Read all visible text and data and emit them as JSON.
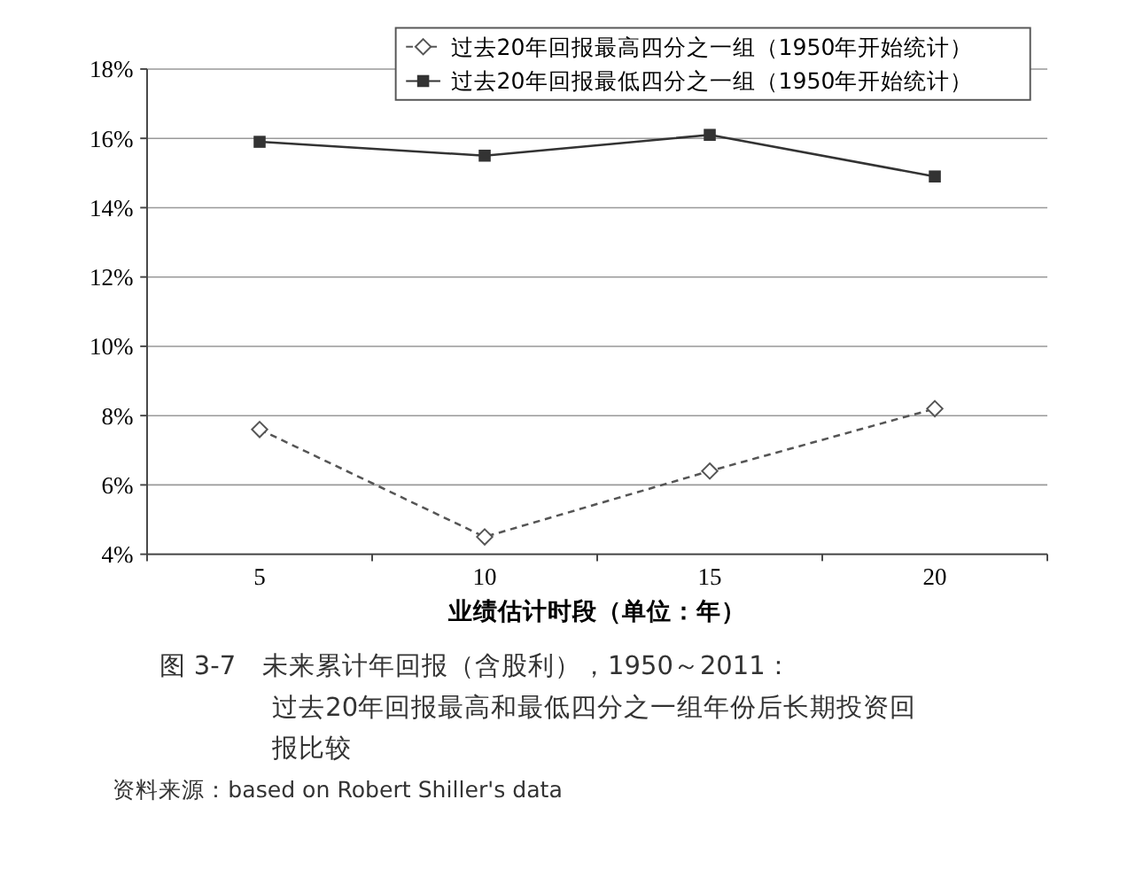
{
  "chart_data": {
    "type": "line",
    "title": "图 3-7　未来累计年回报（含股利），1950～2011：过去20年回报最高和最低四分之一组年份后长期投资回报比较",
    "xlabel": "业绩估计时段（单位：年）",
    "categories": [
      "5",
      "10",
      "15",
      "20"
    ],
    "series": [
      {
        "name": "过去20年回报最高四分之一组（1950年开始统计）",
        "color": "#555555",
        "values": [
          7.6,
          4.5,
          6.4,
          8.2
        ],
        "marker": "diamond",
        "line_style": "dashed"
      },
      {
        "name": "过去20年回报最低四分之一组（1950年开始统计）",
        "color": "#333333",
        "values": [
          15.9,
          15.5,
          16.1,
          14.9
        ],
        "marker": "square",
        "line_style": "solid"
      }
    ],
    "ylim": [
      4,
      18
    ],
    "yticks": [
      {
        "value": 4,
        "label": "4%"
      },
      {
        "value": 6,
        "label": "6%"
      },
      {
        "value": 8,
        "label": "8%"
      },
      {
        "value": 10,
        "label": "10%"
      },
      {
        "value": 12,
        "label": "12%"
      },
      {
        "value": 14,
        "label": "14%"
      },
      {
        "value": 16,
        "label": "16%"
      },
      {
        "value": 18,
        "label": "18%"
      }
    ],
    "grid": "y",
    "legend": "top right",
    "annotations": [
      "资料来源：based on Robert Shiller's data"
    ]
  }
}
